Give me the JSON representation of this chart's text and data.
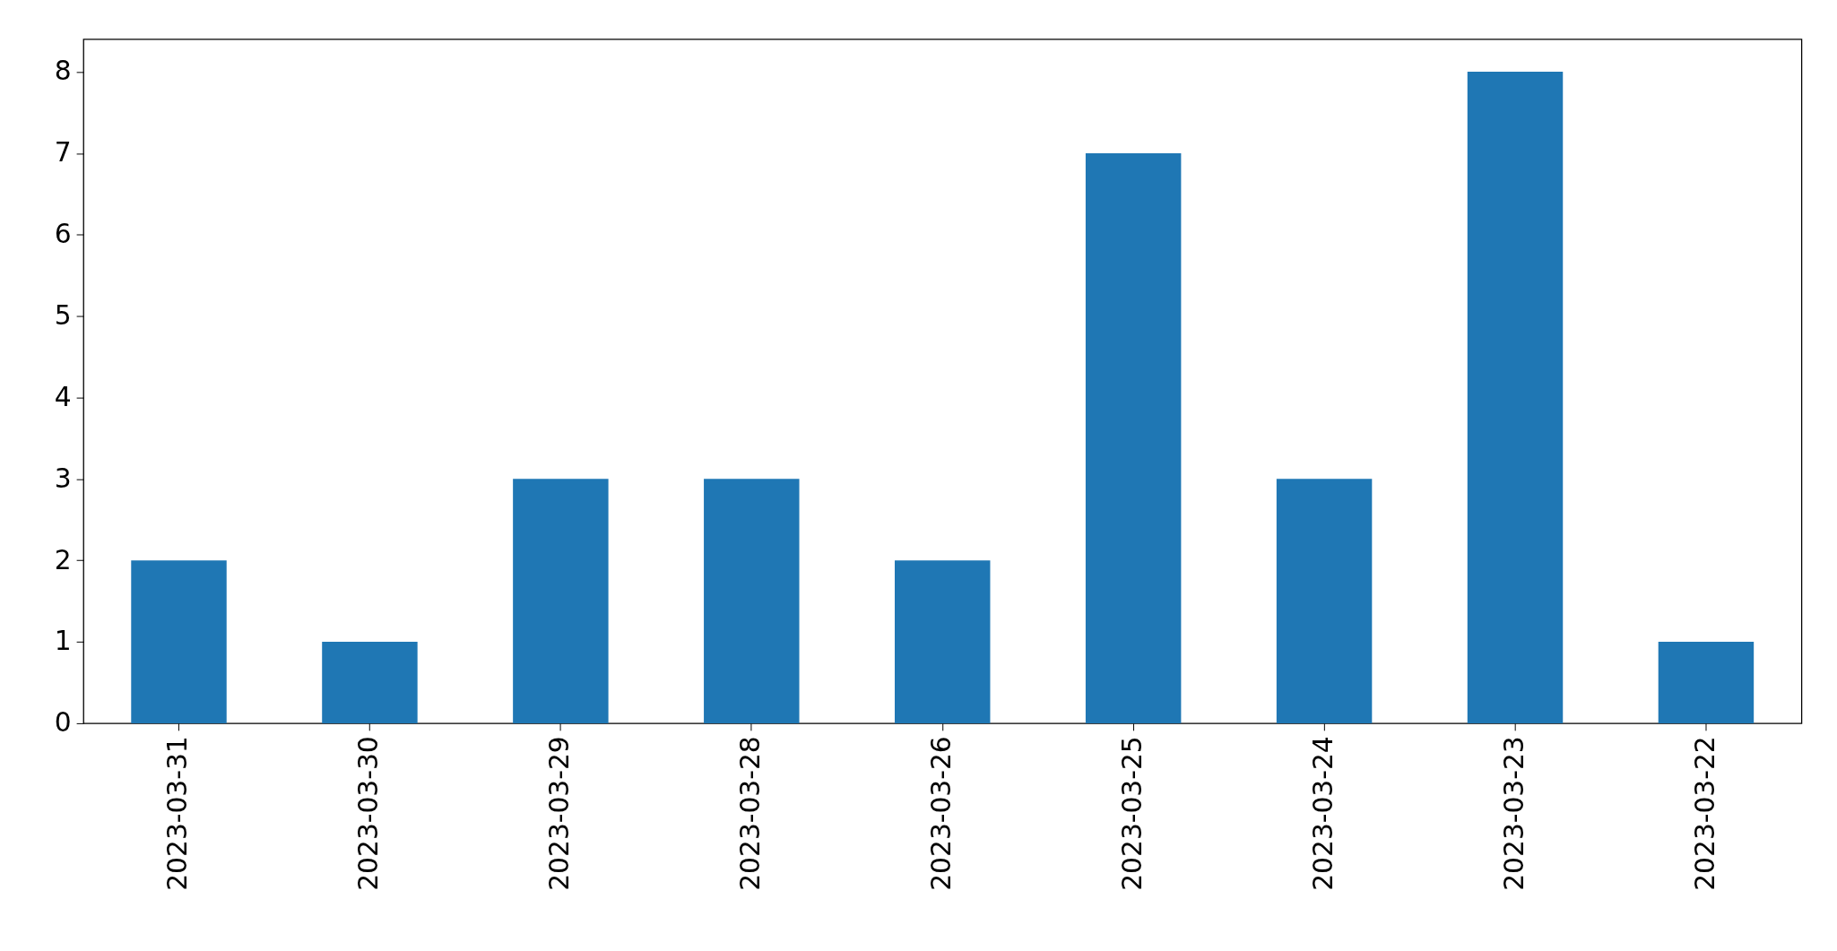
{
  "chart_data": {
    "type": "bar",
    "categories": [
      "2023-03-31",
      "2023-03-30",
      "2023-03-29",
      "2023-03-28",
      "2023-03-26",
      "2023-03-25",
      "2023-03-24",
      "2023-03-23",
      "2023-03-22"
    ],
    "values": [
      2,
      1,
      3,
      3,
      2,
      7,
      3,
      8,
      1
    ],
    "color": "#1f77b4",
    "ylim": [
      0,
      8.4
    ],
    "yticks": [
      0,
      1,
      2,
      3,
      4,
      5,
      6,
      7,
      8
    ],
    "grid": false
  }
}
